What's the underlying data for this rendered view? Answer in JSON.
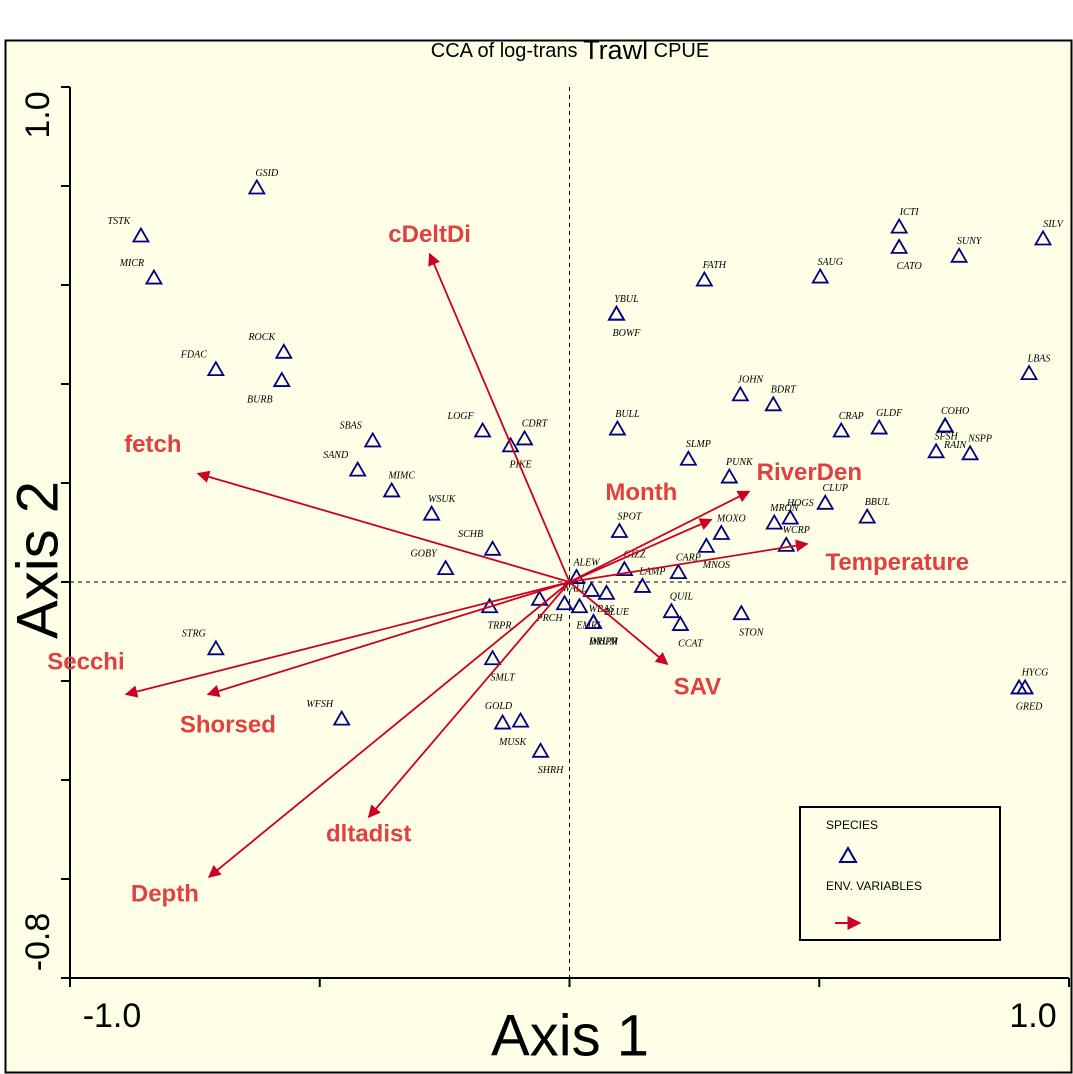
{
  "chart_data": {
    "type": "scatter",
    "title_parts": [
      "CCA of log-trans",
      "Trawl",
      "CPUE"
    ],
    "xlabel": "Axis 1",
    "ylabel": "Axis 2",
    "xlim": [
      -1.0,
      1.0
    ],
    "ylim": [
      -0.8,
      1.0
    ],
    "xticks": [
      {
        "value": -1.0,
        "label": "-1.0"
      },
      {
        "value": 1.0,
        "label": "1.0"
      }
    ],
    "xticks_minor": [
      -0.5,
      0,
      0.5
    ],
    "yticks": [
      {
        "value": -0.8,
        "label": "-0.8"
      },
      {
        "value": 1.0,
        "label": "1.0"
      }
    ],
    "yticks_minor": [
      -0.6,
      -0.4,
      -0.2,
      0,
      0.2,
      0.4,
      0.6,
      0.8
    ],
    "zero_lines": true,
    "series": [
      {
        "name": "SPECIES",
        "color": "#000080",
        "labels": [
          "GSID",
          "TSTK",
          "MICR",
          "ROCK",
          "FDAC",
          "BURB",
          "SBAS",
          "SAND",
          "MIMC",
          "WSUK",
          "LOGF",
          "CDRT",
          "PIKE",
          "SCHB",
          "GOBY",
          "TRPR",
          "PRCH",
          "STRG",
          "SMLT",
          "WFSH",
          "MUSK",
          "GOLD",
          "SHRH",
          "ALEW",
          "WALL",
          "EMRL",
          "WHPR",
          "DRUM",
          "WBAS",
          "BLUE",
          "GIZZ",
          "LAMP",
          "CARP",
          "SPOT",
          "QUIL",
          "CCAT",
          "STON",
          "BULL",
          "YBUL",
          "BOWF",
          "FATH",
          "SAUG",
          "ICTI",
          "CATO",
          "SUNY",
          "SILV",
          "LBAS",
          "JOHN",
          "BDRT",
          "CRAP",
          "GLDF",
          "COHO",
          "RAIN",
          "SFSH",
          "NSPP",
          "SLMP",
          "PUNK",
          "CLUP",
          "BBUL",
          "MRON",
          "HOGS",
          "MOXO",
          "MNOS",
          "WCRP",
          "HYCG",
          "GRED"
        ],
        "x": [
          -0.626,
          -0.858,
          -0.832,
          -0.572,
          -0.708,
          -0.576,
          -0.394,
          -0.424,
          -0.356,
          -0.276,
          -0.174,
          -0.09,
          -0.118,
          -0.154,
          -0.248,
          -0.16,
          -0.06,
          -0.708,
          -0.154,
          -0.456,
          -0.134,
          -0.098,
          -0.058,
          0.014,
          -0.01,
          0.02,
          0.048,
          0.048,
          0.044,
          0.074,
          0.11,
          0.146,
          0.218,
          0.1,
          0.204,
          0.222,
          0.344,
          0.096,
          0.094,
          0.094,
          0.27,
          0.502,
          0.66,
          0.66,
          0.78,
          0.948,
          0.92,
          0.342,
          0.408,
          0.544,
          0.62,
          0.752,
          0.752,
          0.734,
          0.802,
          0.238,
          0.32,
          0.512,
          0.596,
          0.41,
          0.442,
          0.304,
          0.274,
          0.434,
          0.912,
          0.9
        ],
        "y": [
          0.797,
          0.7,
          0.615,
          0.465,
          0.43,
          0.408,
          0.286,
          0.227,
          0.185,
          0.138,
          0.306,
          0.29,
          0.276,
          0.067,
          0.028,
          -0.049,
          -0.034,
          -0.134,
          -0.154,
          -0.276,
          -0.284,
          -0.28,
          -0.341,
          0.01,
          -0.043,
          -0.049,
          -0.081,
          -0.081,
          -0.016,
          -0.022,
          0.026,
          -0.008,
          0.02,
          0.103,
          -0.059,
          -0.085,
          -0.063,
          0.31,
          0.542,
          0.542,
          0.611,
          0.617,
          0.718,
          0.677,
          0.659,
          0.694,
          0.422,
          0.379,
          0.359,
          0.306,
          0.312,
          0.316,
          0.316,
          0.264,
          0.26,
          0.249,
          0.213,
          0.16,
          0.132,
          0.12,
          0.13,
          0.099,
          0.073,
          0.075,
          -0.213,
          -0.213
        ]
      }
    ],
    "arrows": {
      "name": "ENV. VARIABLES",
      "color": "#cc0022",
      "label_color": "#e04040",
      "labels": [
        "cDeltDi",
        "fetch",
        "Month",
        "RiverDen",
        "Temperature",
        "SAV",
        "Secchi",
        "Shorsed",
        "dltadist",
        "Depth"
      ],
      "x": [
        -0.28,
        -0.744,
        0.284,
        0.36,
        0.476,
        0.196,
        -0.888,
        -0.724,
        -0.402,
        -0.722
      ],
      "y": [
        0.663,
        0.219,
        0.126,
        0.183,
        0.077,
        -0.166,
        -0.227,
        -0.227,
        -0.475,
        -0.596
      ]
    }
  }
}
